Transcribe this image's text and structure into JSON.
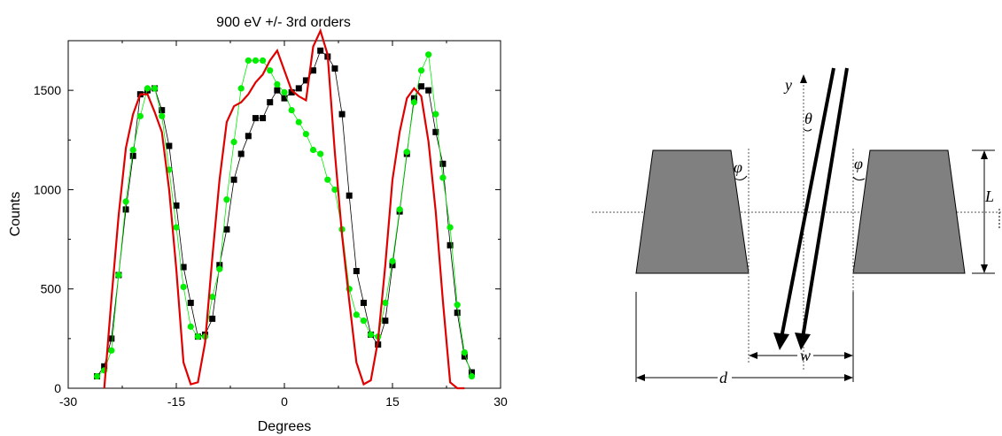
{
  "chart_data": {
    "type": "line",
    "title": "900 eV  +/- 3rd orders",
    "xlabel": "Degrees",
    "ylabel": "Counts",
    "xlim": [
      -30,
      30
    ],
    "ylim": [
      0,
      1750
    ],
    "x_ticks": [
      -30,
      -15,
      0,
      15,
      30
    ],
    "y_ticks": [
      0,
      500,
      1000,
      1500
    ],
    "grid": false,
    "legend": "none",
    "series": [
      {
        "marker": "square",
        "color": "#000000",
        "x": [
          -26,
          -25,
          -24,
          -23,
          -22,
          -21,
          -20,
          -19,
          -18,
          -17,
          -16,
          -15,
          -14,
          -13,
          -12,
          -11,
          -10,
          -9,
          -8,
          -7,
          -6,
          -5,
          -4,
          -3,
          -2,
          -1,
          0,
          1,
          2,
          3,
          4,
          5,
          6,
          7,
          8,
          9,
          10,
          11,
          12,
          13,
          14,
          15,
          16,
          17,
          18,
          19,
          20,
          21,
          22,
          23,
          24,
          25,
          26
        ],
        "y": [
          60,
          110,
          250,
          570,
          900,
          1170,
          1480,
          1500,
          1510,
          1400,
          1220,
          920,
          610,
          430,
          260,
          270,
          350,
          620,
          800,
          1050,
          1180,
          1270,
          1360,
          1360,
          1440,
          1500,
          1460,
          1490,
          1510,
          1550,
          1600,
          1700,
          1670,
          1610,
          1380,
          970,
          590,
          430,
          270,
          220,
          340,
          620,
          890,
          1180,
          1460,
          1520,
          1500,
          1290,
          1130,
          720,
          380,
          160,
          80
        ]
      },
      {
        "marker": "circle",
        "color": "#00ee00",
        "x": [
          -26,
          -25,
          -24,
          -23,
          -22,
          -21,
          -20,
          -19,
          -18,
          -17,
          -16,
          -15,
          -14,
          -13,
          -12,
          -11,
          -10,
          -9,
          -8,
          -7,
          -6,
          -5,
          -4,
          -3,
          -2,
          -1,
          0,
          1,
          2,
          3,
          4,
          5,
          6,
          7,
          8,
          9,
          10,
          11,
          12,
          13,
          14,
          15,
          16,
          17,
          18,
          19,
          20,
          21,
          22,
          23,
          24,
          25,
          26
        ],
        "y": [
          60,
          90,
          190,
          570,
          940,
          1200,
          1370,
          1510,
          1510,
          1370,
          1100,
          810,
          510,
          310,
          260,
          260,
          460,
          600,
          950,
          1240,
          1510,
          1650,
          1650,
          1650,
          1600,
          1530,
          1490,
          1400,
          1340,
          1280,
          1200,
          1180,
          1050,
          1000,
          800,
          500,
          370,
          340,
          270,
          260,
          430,
          640,
          900,
          1190,
          1440,
          1600,
          1680,
          1380,
          1060,
          810,
          420,
          180,
          60
        ]
      },
      {
        "marker": "none",
        "color": "#e00000",
        "x": [
          -25,
          -24,
          -23,
          -22,
          -21,
          -20,
          -19,
          -18,
          -17,
          -16,
          -15,
          -14,
          -13,
          -12,
          -11,
          -10,
          -9,
          -8,
          -7,
          -6,
          -5,
          -4,
          -3,
          -2,
          -1,
          0,
          1,
          2,
          3,
          4,
          5,
          6,
          7,
          8,
          9,
          10,
          11,
          12,
          13,
          14,
          15,
          16,
          17,
          18,
          19,
          20,
          21,
          22,
          23,
          24,
          25
        ],
        "y": [
          0,
          450,
          870,
          1210,
          1380,
          1480,
          1480,
          1390,
          1290,
          1000,
          600,
          130,
          20,
          30,
          230,
          660,
          1050,
          1340,
          1420,
          1440,
          1480,
          1540,
          1580,
          1650,
          1700,
          1600,
          1500,
          1470,
          1450,
          1720,
          1800,
          1680,
          1190,
          770,
          440,
          130,
          20,
          40,
          240,
          620,
          1050,
          1290,
          1460,
          1510,
          1470,
          1240,
          890,
          440,
          30,
          0,
          0
        ]
      }
    ]
  },
  "diagram": {
    "labels": {
      "y": "y",
      "theta": "θ",
      "phi_left": "φ",
      "phi_right": "φ",
      "L": "L",
      "w": "w",
      "d": "d"
    }
  }
}
